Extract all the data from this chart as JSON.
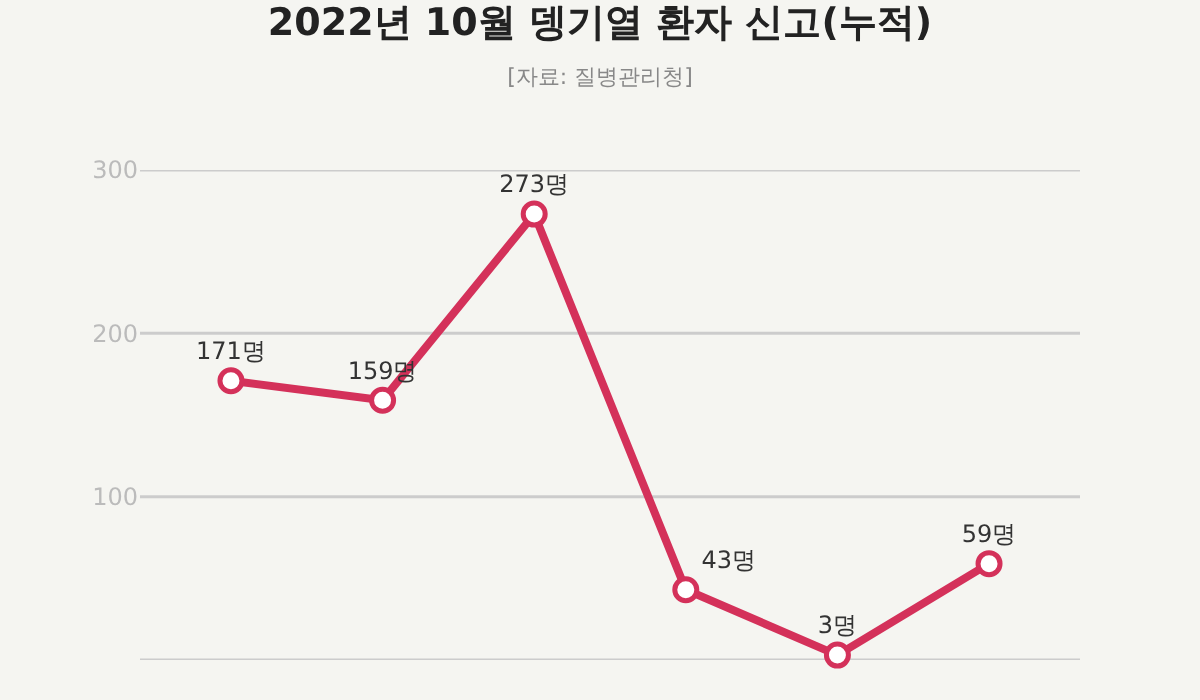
{
  "chart_data": {
    "type": "line",
    "title": "2022년 10월 뎅기열 환자 신고(누적)",
    "subtitle": "[자료: 질병관리청]",
    "categories": [
      null,
      null,
      null,
      null,
      null,
      null
    ],
    "series": [
      {
        "color": "#d4315a",
        "values": [
          171,
          159,
          273,
          43,
          3,
          59
        ],
        "value_labels": [
          "171명",
          "159명",
          "273명",
          "43명",
          "3명",
          "59명"
        ]
      }
    ],
    "ylim": [
      0,
      300
    ],
    "yticks": [
      {
        "value": 0,
        "label": null
      },
      100,
      200,
      300
    ],
    "grid": "y",
    "marker": "circle",
    "line_style": "solid",
    "tick_labels": "y"
  }
}
